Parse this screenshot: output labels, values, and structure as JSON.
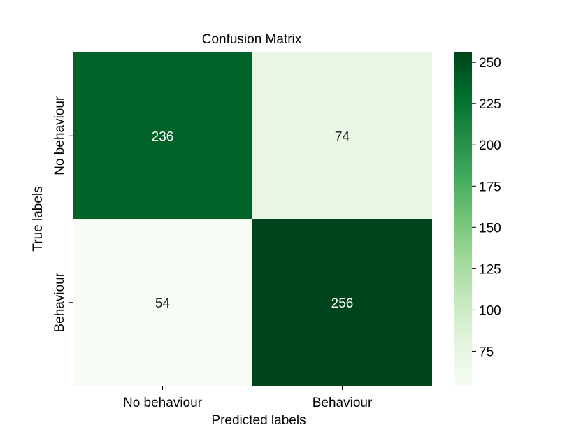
{
  "chart_data": {
    "type": "heatmap",
    "title": "Confusion Matrix",
    "xlabel": "Predicted labels",
    "ylabel": "True labels",
    "x_categories": [
      "No behaviour",
      "Behaviour"
    ],
    "y_categories": [
      "No behaviour",
      "Behaviour"
    ],
    "values": [
      [
        236,
        74
      ],
      [
        54,
        256
      ]
    ],
    "colormap": "Greens",
    "color_range": [
      54,
      256
    ],
    "colorbar_ticks": [
      75,
      100,
      125,
      150,
      175,
      200,
      225,
      250
    ],
    "colorbar_tick_labels": [
      "75",
      "100",
      "125",
      "150",
      "175",
      "200",
      "225",
      "250"
    ],
    "cell_labels": [
      [
        "236",
        "74"
      ],
      [
        "54",
        "256"
      ]
    ]
  }
}
